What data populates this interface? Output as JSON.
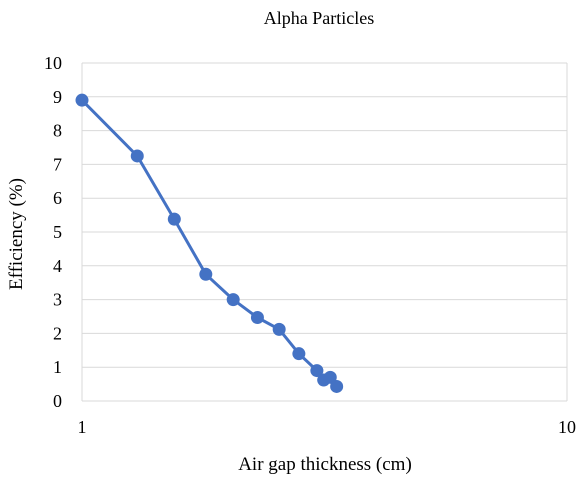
{
  "chart_data": {
    "type": "scatter",
    "title": "Alpha Particles",
    "xlabel": "Air gap thickness (cm)",
    "ylabel": "Efficiency (%)",
    "x_scale": "log",
    "xlim": [
      1,
      10
    ],
    "x_ticks": [
      "1",
      "10"
    ],
    "ylim": [
      0,
      10
    ],
    "y_ticks": [
      "0",
      "1",
      "2",
      "3",
      "4",
      "5",
      "6",
      "7",
      "8",
      "9",
      "10"
    ],
    "grid": "horizontal",
    "legend": "none",
    "series": [
      {
        "color": "#4472C4",
        "x": [
          1.0,
          1.3,
          1.55,
          1.8,
          2.05,
          2.3,
          2.55,
          2.8,
          3.05,
          3.15,
          3.25,
          3.35
        ],
        "y": [
          8.9,
          7.25,
          5.38,
          3.75,
          3.0,
          2.47,
          2.12,
          1.4,
          0.9,
          0.62,
          0.7,
          0.43
        ]
      }
    ]
  }
}
